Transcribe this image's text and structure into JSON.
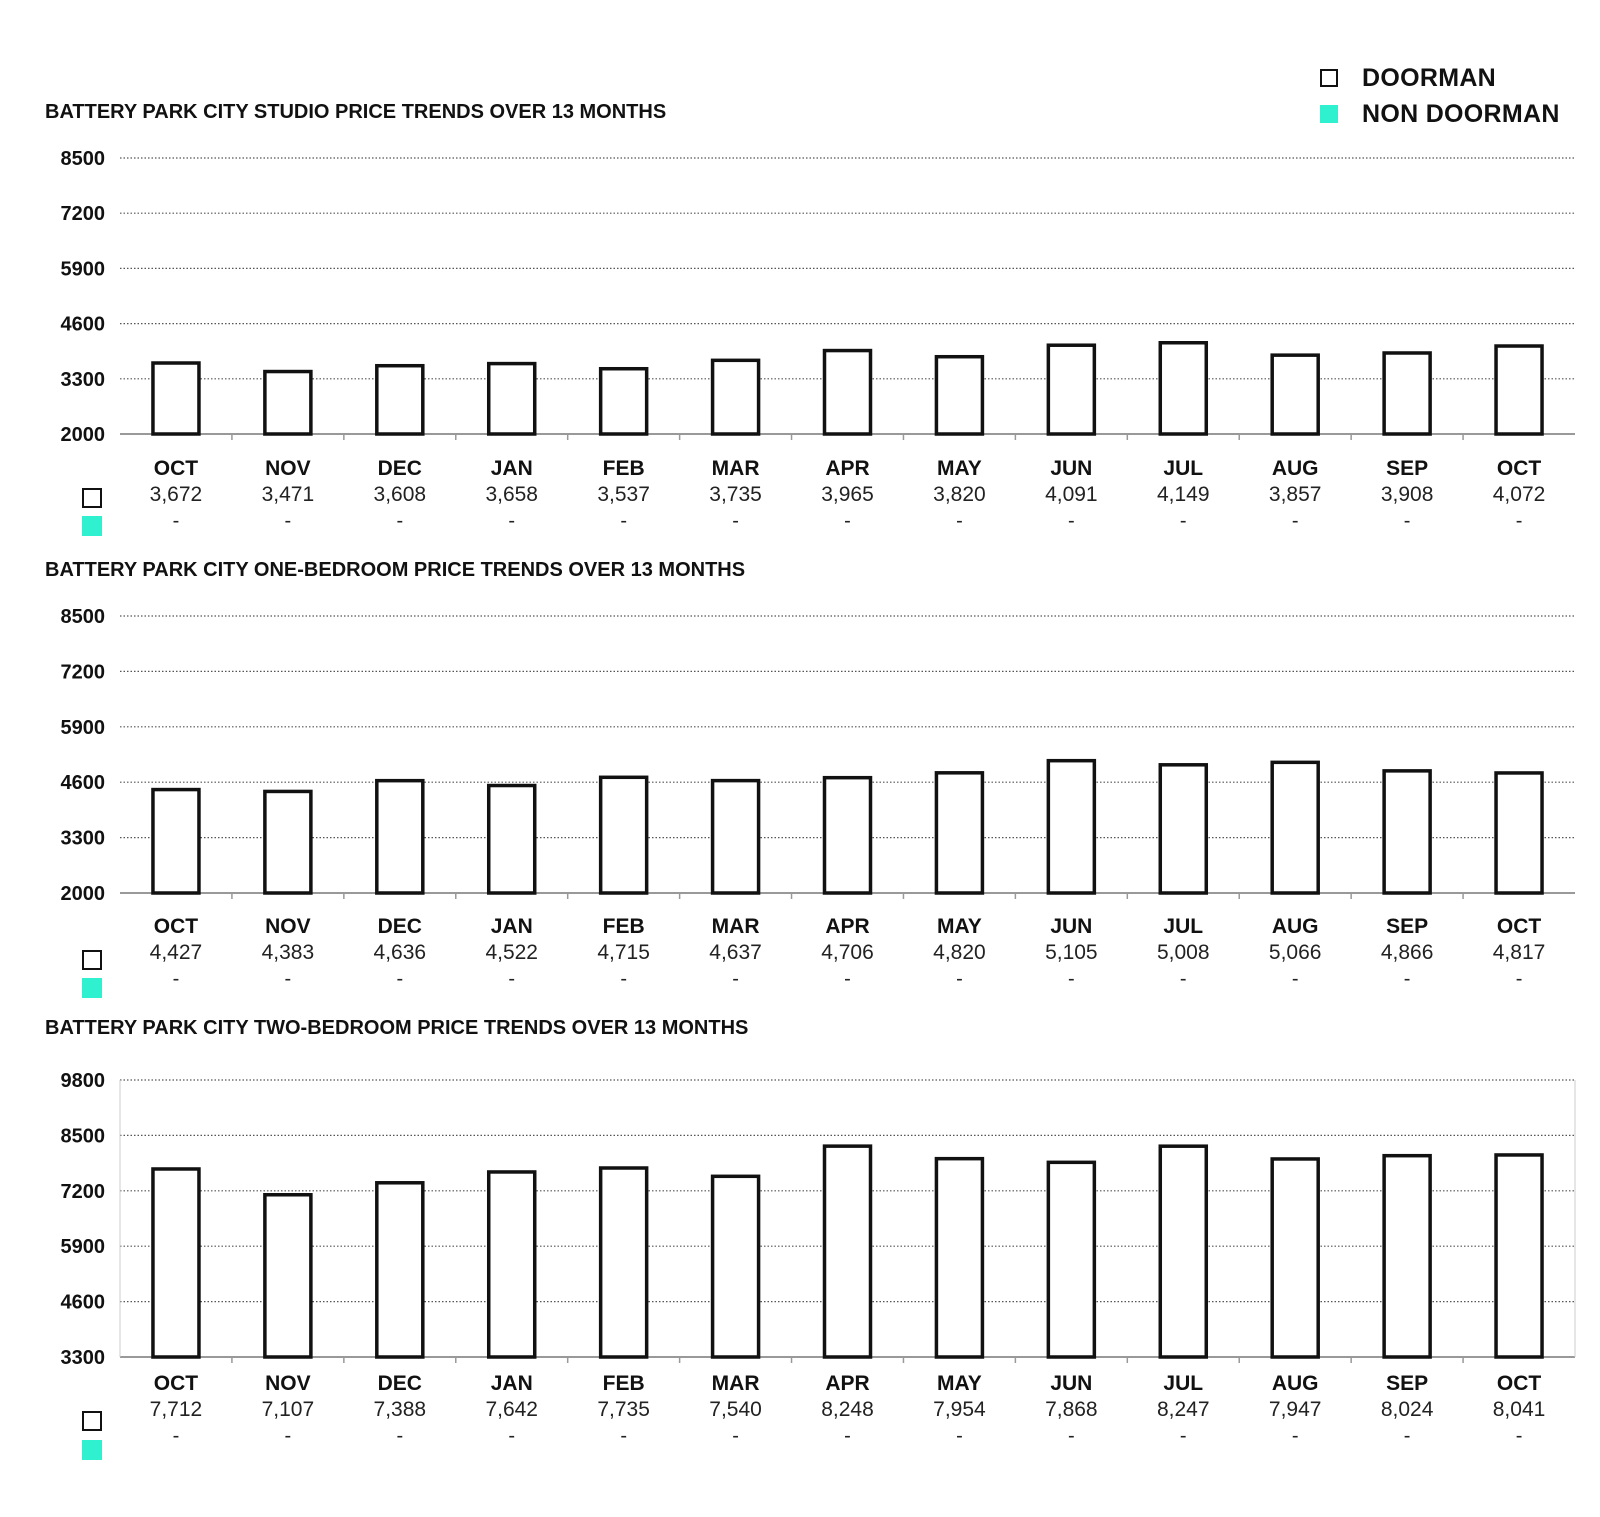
{
  "legend": [
    {
      "label": "DOORMAN",
      "style": "outline",
      "color": "#111111"
    },
    {
      "label": "NON DOORMAN",
      "style": "fill",
      "color": "#2ff0cf"
    }
  ],
  "colors": {
    "doorman_stroke": "#111111",
    "non_doorman": "#2ff0cf",
    "grid": "#555555",
    "axis": "#999999"
  },
  "chart_data": [
    {
      "type": "bar",
      "title": "BATTERY PARK CITY STUDIO PRICE TRENDS OVER 13 MONTHS",
      "categories": [
        "OCT",
        "NOV",
        "DEC",
        "JAN",
        "FEB",
        "MAR",
        "APR",
        "MAY",
        "JUN",
        "JUL",
        "AUG",
        "SEP",
        "OCT"
      ],
      "yticks": [
        2000,
        3300,
        4600,
        5900,
        7200,
        8500
      ],
      "ylim": [
        2000,
        8500
      ],
      "grid": true,
      "series": [
        {
          "name": "DOORMAN",
          "values": [
            3672,
            3471,
            3608,
            3658,
            3537,
            3735,
            3965,
            3820,
            4091,
            4149,
            3857,
            3908,
            4072
          ],
          "labels": [
            "3,672",
            "3,471",
            "3,608",
            "3,658",
            "3,537",
            "3,735",
            "3,965",
            "3,820",
            "4,091",
            "4,149",
            "3,857",
            "3,908",
            "4,072"
          ]
        },
        {
          "name": "NON DOORMAN",
          "values": [
            null,
            null,
            null,
            null,
            null,
            null,
            null,
            null,
            null,
            null,
            null,
            null,
            null
          ],
          "labels": [
            "-",
            "-",
            "-",
            "-",
            "-",
            "-",
            "-",
            "-",
            "-",
            "-",
            "-",
            "-",
            "-"
          ]
        }
      ]
    },
    {
      "type": "bar",
      "title": "BATTERY PARK CITY ONE-BEDROOM PRICE TRENDS OVER 13 MONTHS",
      "categories": [
        "OCT",
        "NOV",
        "DEC",
        "JAN",
        "FEB",
        "MAR",
        "APR",
        "MAY",
        "JUN",
        "JUL",
        "AUG",
        "SEP",
        "OCT"
      ],
      "yticks": [
        2000,
        3300,
        4600,
        5900,
        7200,
        8500
      ],
      "ylim": [
        2000,
        8500
      ],
      "grid": true,
      "series": [
        {
          "name": "DOORMAN",
          "values": [
            4427,
            4383,
            4636,
            4522,
            4715,
            4637,
            4706,
            4820,
            5105,
            5008,
            5066,
            4866,
            4817
          ],
          "labels": [
            "4,427",
            "4,383",
            "4,636",
            "4,522",
            "4,715",
            "4,637",
            "4,706",
            "4,820",
            "5,105",
            "5,008",
            "5,066",
            "4,866",
            "4,817"
          ]
        },
        {
          "name": "NON DOORMAN",
          "values": [
            null,
            null,
            null,
            null,
            null,
            null,
            null,
            null,
            null,
            null,
            null,
            null,
            null
          ],
          "labels": [
            "-",
            "-",
            "-",
            "-",
            "-",
            "-",
            "-",
            "-",
            "-",
            "-",
            "-",
            "-",
            "-"
          ]
        }
      ]
    },
    {
      "type": "bar",
      "title": "BATTERY PARK CITY TWO-BEDROOM PRICE TRENDS OVER 13 MONTHS",
      "categories": [
        "OCT",
        "NOV",
        "DEC",
        "JAN",
        "FEB",
        "MAR",
        "APR",
        "MAY",
        "JUN",
        "JUL",
        "AUG",
        "SEP",
        "OCT"
      ],
      "yticks": [
        3300,
        4600,
        5900,
        7200,
        8500,
        9800
      ],
      "ylim": [
        3300,
        9800
      ],
      "grid": true,
      "series": [
        {
          "name": "DOORMAN",
          "values": [
            7712,
            7107,
            7388,
            7642,
            7735,
            7540,
            8248,
            7954,
            7868,
            8247,
            7947,
            8024,
            8041
          ],
          "labels": [
            "7,712",
            "7,107",
            "7,388",
            "7,642",
            "7,735",
            "7,540",
            "8,248",
            "7,954",
            "7,868",
            "8,247",
            "7,947",
            "8,024",
            "8,041"
          ]
        },
        {
          "name": "NON DOORMAN",
          "values": [
            null,
            null,
            null,
            null,
            null,
            null,
            null,
            null,
            null,
            null,
            null,
            null,
            null
          ],
          "labels": [
            "-",
            "-",
            "-",
            "-",
            "-",
            "-",
            "-",
            "-",
            "-",
            "-",
            "-",
            "-",
            "-"
          ]
        }
      ]
    }
  ]
}
